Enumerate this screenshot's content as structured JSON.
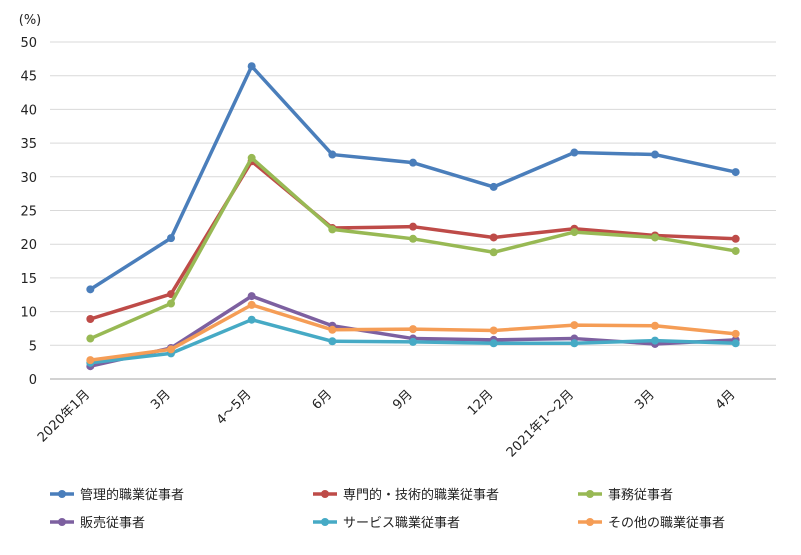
{
  "chart_data": {
    "type": "line",
    "title": "",
    "xlabel": "",
    "ylabel": "",
    "y_unit": "(%)",
    "ylim": [
      0,
      50
    ],
    "y_ticks": [
      0,
      5,
      10,
      15,
      20,
      25,
      30,
      35,
      40,
      45,
      50
    ],
    "grid": true,
    "legend_position": "bottom",
    "categories": [
      "2020年1月",
      "3月",
      "4～5月",
      "6月",
      "9月",
      "12月",
      "2021年1～2月",
      "3月",
      "4月"
    ],
    "series": [
      {
        "name": "管理的職業従事者",
        "color": "#4a7ebb",
        "values": [
          13.3,
          20.9,
          46.4,
          33.3,
          32.1,
          28.5,
          33.6,
          33.3,
          30.7
        ]
      },
      {
        "name": "専門的・技術的職業従事者",
        "color": "#be4b48",
        "values": [
          8.9,
          12.6,
          32.3,
          22.4,
          22.6,
          21.0,
          22.3,
          21.3,
          20.8
        ]
      },
      {
        "name": "事務従事者",
        "color": "#98b954",
        "values": [
          6.0,
          11.2,
          32.8,
          22.2,
          20.8,
          18.8,
          21.8,
          21.0,
          19.0
        ]
      },
      {
        "name": "販売従事者",
        "color": "#7d60a0",
        "values": [
          1.9,
          4.6,
          12.3,
          7.9,
          6.0,
          5.8,
          6.0,
          5.2,
          5.8
        ]
      },
      {
        "name": "サービス職業従事者",
        "color": "#46aac5",
        "values": [
          2.4,
          3.8,
          8.8,
          5.6,
          5.5,
          5.3,
          5.3,
          5.7,
          5.3
        ]
      },
      {
        "name": "その他の職業従事者",
        "color": "#f59d56",
        "values": [
          2.8,
          4.4,
          11.0,
          7.3,
          7.4,
          7.2,
          8.0,
          7.9,
          6.7
        ]
      }
    ]
  }
}
